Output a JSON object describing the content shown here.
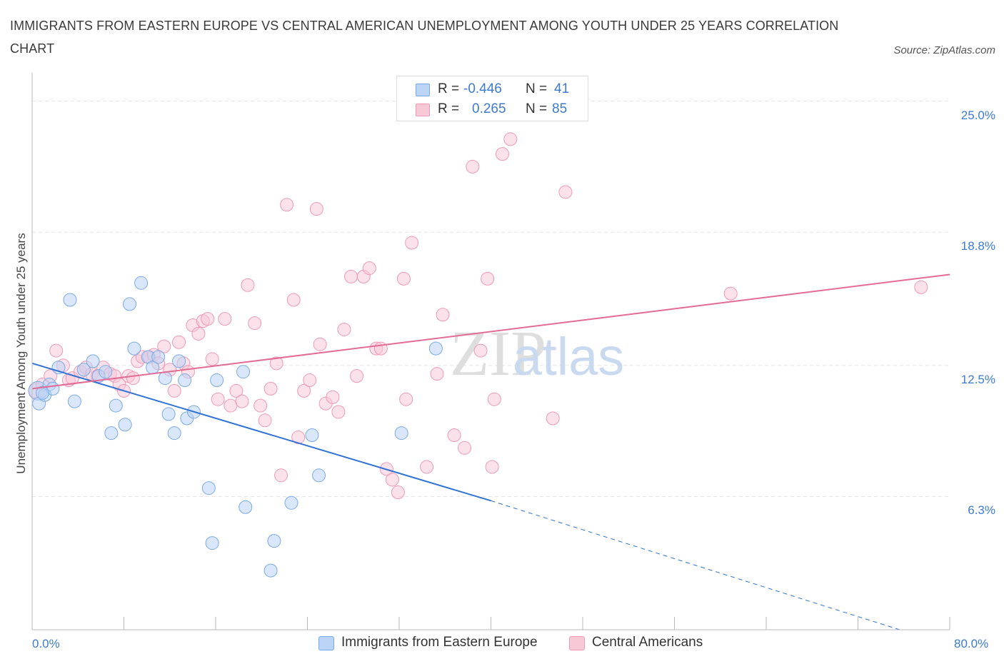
{
  "chart_data": {
    "type": "scatter",
    "title": "IMMIGRANTS FROM EASTERN EUROPE VS CENTRAL AMERICAN UNEMPLOYMENT AMONG YOUTH UNDER 25 YEARS CORRELATION CHART",
    "source": "Source: ZipAtlas.com",
    "xlabel": "",
    "ylabel": "Unemployment Among Youth under 25 years",
    "xlim": [
      0,
      80
    ],
    "ylim": [
      0,
      26
    ],
    "y_ticks": [
      {
        "value": 25.0,
        "label": "25.0%"
      },
      {
        "value": 18.8,
        "label": "18.8%"
      },
      {
        "value": 12.5,
        "label": "12.5%"
      },
      {
        "value": 6.3,
        "label": "6.3%"
      }
    ],
    "x_tick_labels": {
      "min": "0.0%",
      "max": "80.0%"
    },
    "grid": true,
    "legend": {
      "placement": "top-center",
      "rows": [
        {
          "r_label": "R =",
          "r_value": "-0.446",
          "n_label": "N =",
          "n_value": "41"
        },
        {
          "r_label": "R =",
          "r_value": "0.265",
          "n_label": "N =",
          "n_value": "85"
        }
      ]
    },
    "colors": {
      "blue": "#7aaae6",
      "blue_fill": "#bcd4f5",
      "blue_line": "#2f73d6",
      "pink": "#ee9ab6",
      "pink_fill": "#f7c9d7",
      "pink_line": "#e36b95",
      "axis_text": "#3d7bd1"
    },
    "series": [
      {
        "name": "Immigrants from Eastern Europe",
        "color": "blue",
        "points": [
          [
            0.5,
            11.3
          ],
          [
            0.6,
            10.7
          ],
          [
            1.1,
            11.1
          ],
          [
            1.5,
            11.6
          ],
          [
            1.8,
            11.4
          ],
          [
            2.3,
            12.4
          ],
          [
            3.3,
            15.6
          ],
          [
            3.7,
            10.8
          ],
          [
            4.5,
            12.3
          ],
          [
            5.3,
            12.7
          ],
          [
            5.8,
            12.0
          ],
          [
            6.4,
            12.2
          ],
          [
            6.9,
            9.3
          ],
          [
            7.3,
            10.6
          ],
          [
            8.1,
            9.7
          ],
          [
            8.5,
            15.4
          ],
          [
            8.9,
            13.3
          ],
          [
            9.5,
            16.4
          ],
          [
            10.1,
            12.9
          ],
          [
            10.5,
            12.4
          ],
          [
            11.0,
            12.9
          ],
          [
            11.6,
            11.9
          ],
          [
            11.9,
            10.2
          ],
          [
            12.4,
            9.3
          ],
          [
            12.8,
            12.7
          ],
          [
            13.3,
            11.8
          ],
          [
            13.5,
            10.0
          ],
          [
            14.1,
            10.3
          ],
          [
            15.4,
            6.7
          ],
          [
            15.7,
            4.1
          ],
          [
            16.1,
            11.8
          ],
          [
            18.4,
            12.2
          ],
          [
            18.6,
            5.8
          ],
          [
            20.8,
            2.8
          ],
          [
            21.1,
            4.2
          ],
          [
            22.6,
            6.0
          ],
          [
            24.4,
            9.2
          ],
          [
            25.0,
            7.3
          ],
          [
            32.2,
            9.3
          ],
          [
            35.2,
            13.3
          ],
          [
            0.9,
            11.2
          ]
        ],
        "trend": {
          "x": [
            0,
            40
          ],
          "y": [
            12.6,
            6.1
          ],
          "dashed_to": [
            80,
            0
          ]
        }
      },
      {
        "name": "Central Americans",
        "color": "pink",
        "points": [
          [
            0.4,
            11.3
          ],
          [
            0.9,
            11.6
          ],
          [
            1.6,
            12.0
          ],
          [
            2.1,
            13.2
          ],
          [
            2.7,
            12.5
          ],
          [
            3.2,
            11.8
          ],
          [
            3.5,
            11.9
          ],
          [
            4.2,
            12.2
          ],
          [
            4.7,
            12.4
          ],
          [
            5.2,
            12.1
          ],
          [
            5.7,
            12.0
          ],
          [
            6.2,
            12.4
          ],
          [
            6.8,
            12.1
          ],
          [
            7.2,
            12.0
          ],
          [
            7.6,
            11.6
          ],
          [
            8.0,
            11.3
          ],
          [
            8.4,
            12.0
          ],
          [
            8.8,
            11.9
          ],
          [
            9.2,
            12.7
          ],
          [
            9.6,
            12.9
          ],
          [
            10.2,
            12.9
          ],
          [
            10.6,
            13.0
          ],
          [
            11.0,
            12.6
          ],
          [
            11.5,
            13.4
          ],
          [
            12.0,
            12.3
          ],
          [
            12.4,
            11.3
          ],
          [
            12.8,
            13.6
          ],
          [
            13.2,
            12.6
          ],
          [
            13.6,
            12.2
          ],
          [
            14.0,
            14.4
          ],
          [
            14.5,
            14.0
          ],
          [
            14.9,
            14.6
          ],
          [
            15.3,
            14.7
          ],
          [
            15.7,
            12.8
          ],
          [
            16.2,
            10.9
          ],
          [
            16.8,
            14.7
          ],
          [
            17.3,
            10.6
          ],
          [
            17.8,
            11.3
          ],
          [
            18.3,
            10.8
          ],
          [
            18.8,
            16.3
          ],
          [
            19.4,
            14.5
          ],
          [
            19.9,
            10.6
          ],
          [
            20.3,
            9.9
          ],
          [
            20.8,
            11.4
          ],
          [
            21.3,
            12.6
          ],
          [
            21.7,
            7.3
          ],
          [
            22.2,
            20.1
          ],
          [
            22.8,
            15.6
          ],
          [
            23.2,
            9.1
          ],
          [
            23.7,
            11.3
          ],
          [
            24.2,
            11.8
          ],
          [
            24.8,
            19.9
          ],
          [
            25.1,
            13.5
          ],
          [
            25.6,
            10.7
          ],
          [
            26.2,
            11.0
          ],
          [
            26.7,
            10.3
          ],
          [
            27.2,
            14.2
          ],
          [
            27.8,
            16.7
          ],
          [
            28.3,
            12.0
          ],
          [
            28.9,
            16.7
          ],
          [
            29.4,
            17.1
          ],
          [
            30.0,
            13.3
          ],
          [
            30.4,
            13.3
          ],
          [
            30.9,
            7.6
          ],
          [
            31.4,
            7.1
          ],
          [
            31.9,
            6.5
          ],
          [
            32.4,
            16.6
          ],
          [
            32.6,
            10.9
          ],
          [
            33.1,
            18.3
          ],
          [
            34.4,
            7.7
          ],
          [
            35.3,
            12.1
          ],
          [
            35.8,
            14.9
          ],
          [
            36.8,
            9.2
          ],
          [
            37.7,
            8.6
          ],
          [
            38.4,
            21.9
          ],
          [
            39.1,
            13.2
          ],
          [
            39.7,
            16.6
          ],
          [
            40.1,
            7.7
          ],
          [
            40.3,
            10.9
          ],
          [
            41.0,
            22.5
          ],
          [
            41.7,
            23.2
          ],
          [
            45.4,
            10.0
          ],
          [
            46.5,
            20.7
          ],
          [
            60.9,
            15.9
          ],
          [
            77.5,
            16.2
          ]
        ],
        "trend": {
          "x": [
            0,
            80
          ],
          "y": [
            11.4,
            16.8
          ]
        }
      }
    ]
  }
}
